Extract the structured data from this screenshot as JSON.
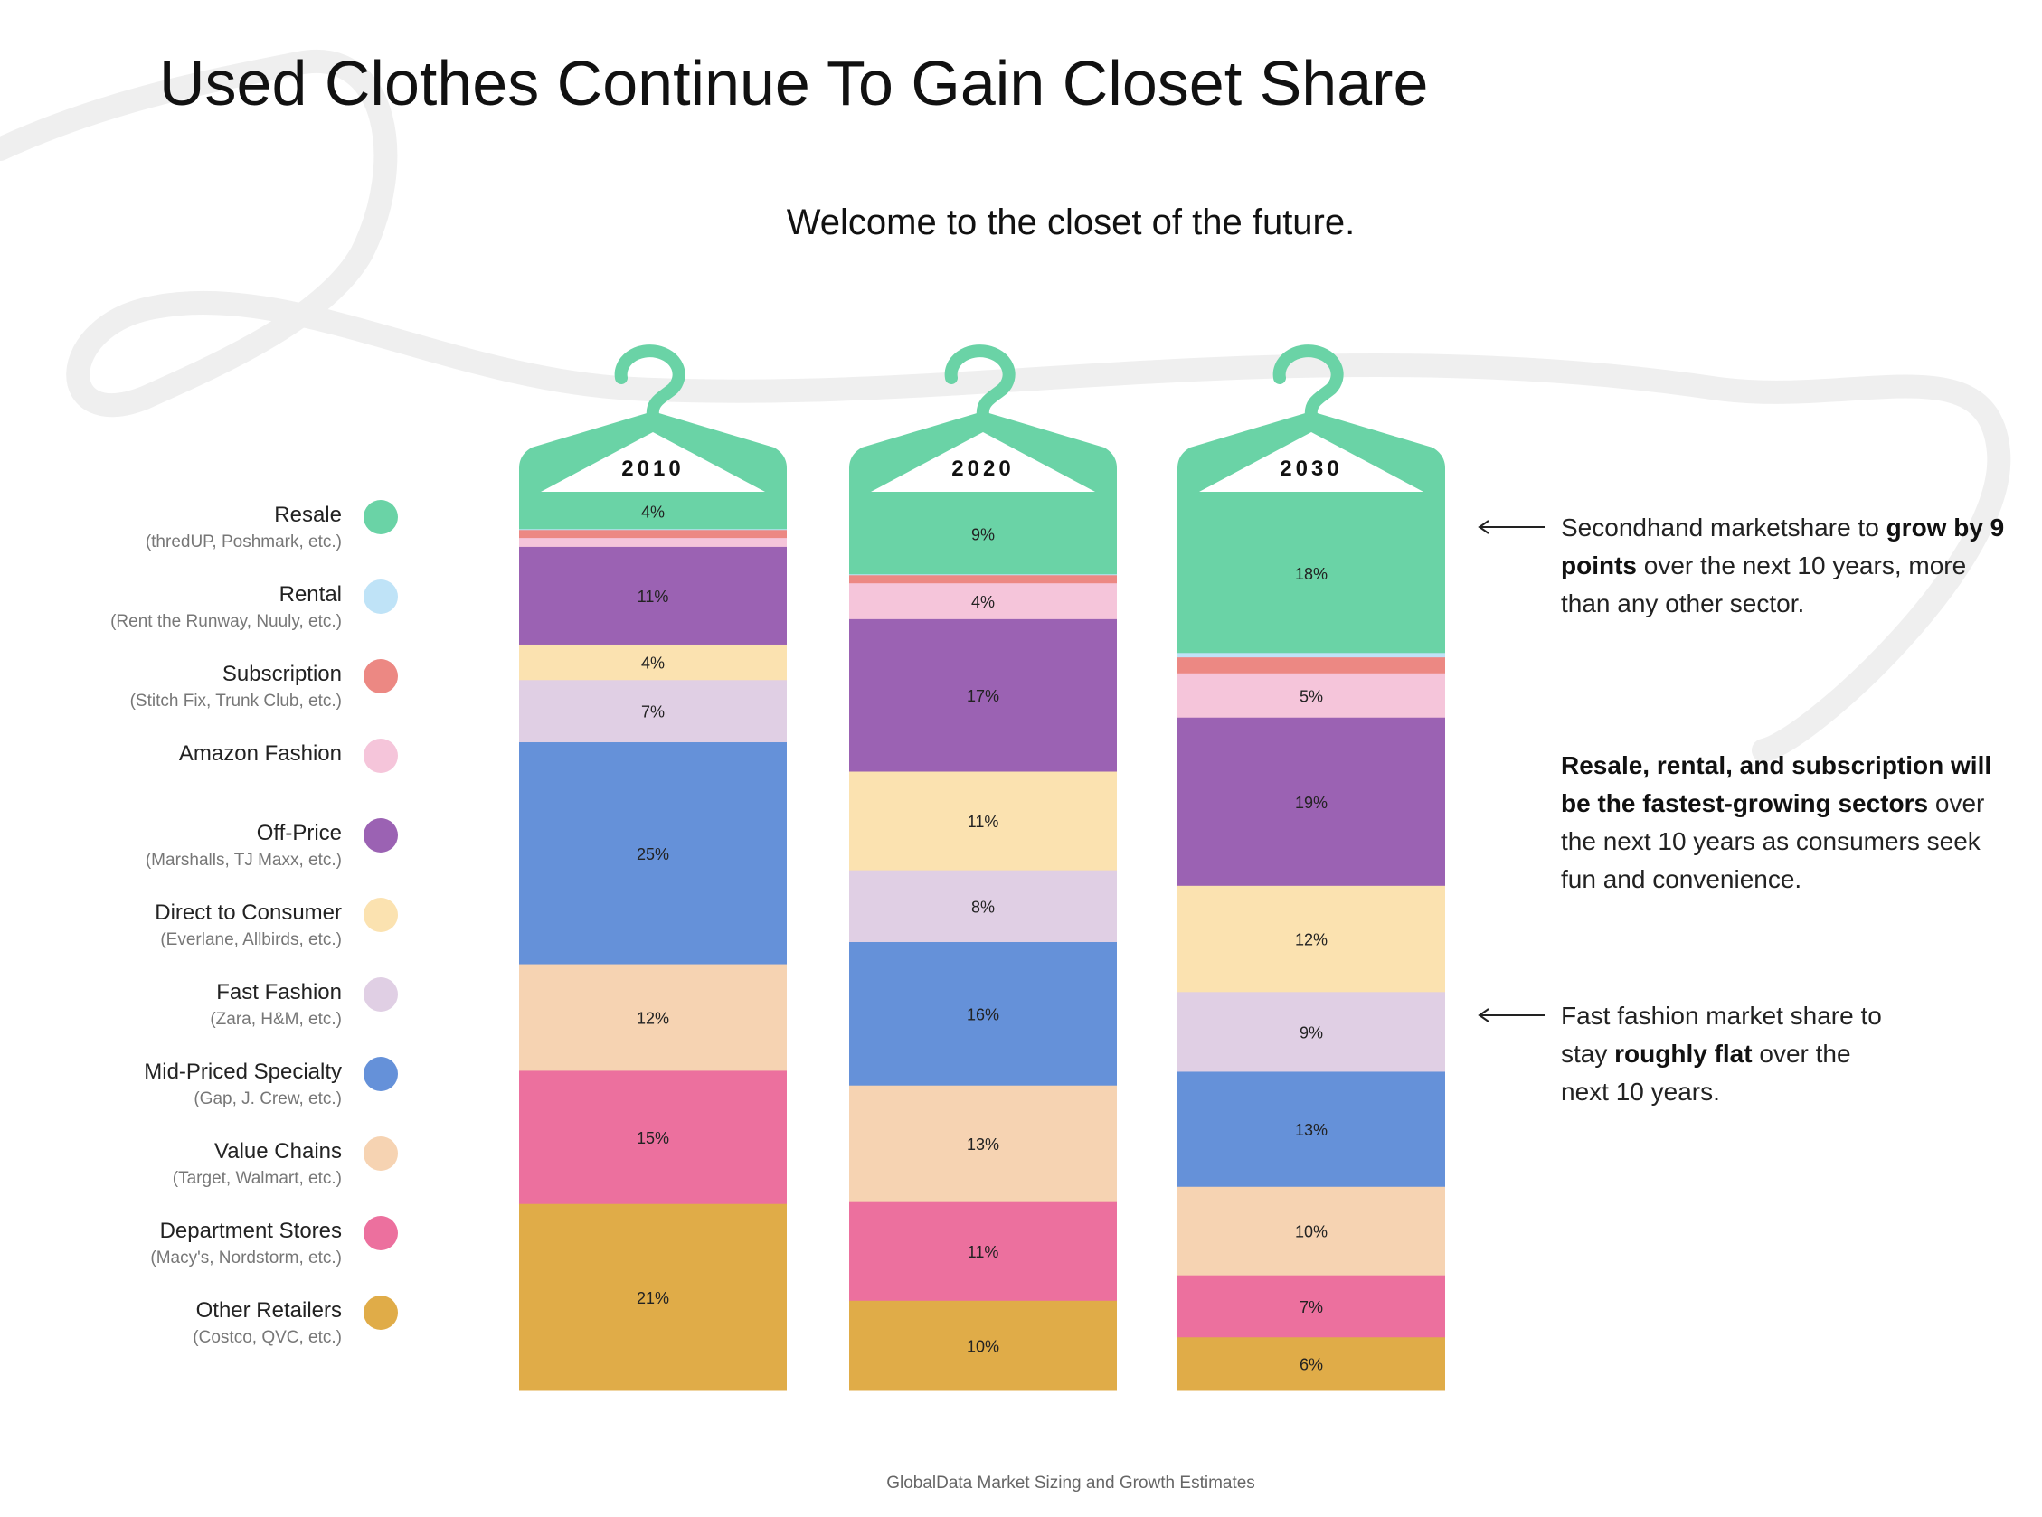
{
  "title": "Used Clothes Continue To Gain Closet Share",
  "subtitle": "Welcome to the closet of the future.",
  "source": "GlobalData Market Sizing and Growth Estimates",
  "legend": [
    {
      "name": "Resale",
      "sub": "(thredUP, Poshmark, etc.)",
      "color": "#6ad3a6"
    },
    {
      "name": "Rental",
      "sub": "(Rent the Runway, Nuuly, etc.)",
      "color": "#bfe3f7"
    },
    {
      "name": "Subscription",
      "sub": "(Stitch Fix, Trunk Club, etc.)",
      "color": "#ec8883"
    },
    {
      "name": "Amazon Fashion",
      "sub": "",
      "color": "#f5c5da"
    },
    {
      "name": "Off-Price",
      "sub": "(Marshalls, TJ Maxx, etc.)",
      "color": "#9b62b3"
    },
    {
      "name": "Direct to Consumer",
      "sub": "(Everlane, Allbirds, etc.)",
      "color": "#fbe2b0"
    },
    {
      "name": "Fast Fashion",
      "sub": "(Zara, H&M, etc.)",
      "color": "#e0cfe4"
    },
    {
      "name": "Mid-Priced Specialty",
      "sub": "(Gap, J. Crew, etc.)",
      "color": "#6591d9"
    },
    {
      "name": "Value Chains",
      "sub": "(Target, Walmart, etc.)",
      "color": "#f6d3b2"
    },
    {
      "name": "Department Stores",
      "sub": "(Macy's, Nordstorm, etc.)",
      "color": "#ec709e"
    },
    {
      "name": "Other Retailers",
      "sub": "(Costco, QVC, etc.)",
      "color": "#e0ac48"
    }
  ],
  "annotations": {
    "note1": {
      "pre": "Secondhand marketshare to ",
      "bold": "grow by 9 points",
      "post": " over the next 10 years, more than any other sector."
    },
    "note2": {
      "pre": "",
      "bold": "Resale, rental, and subscription will be the fastest-growing sectors",
      "post": " over the next 10 years as consumers seek fun and convenience."
    },
    "note3": {
      "pre": "Fast fashion market share to stay ",
      "bold": "roughly flat",
      "post": " over the next 10 years."
    }
  },
  "colors": {
    "hanger": "#6ad3a6",
    "swoosh": "#efefef"
  },
  "chart_data": {
    "type": "bar",
    "stacked": true,
    "unit": "%",
    "categories": [
      "2010",
      "2020",
      "2030"
    ],
    "series": [
      {
        "name": "Resale",
        "values": [
          4,
          9,
          18
        ],
        "labels": [
          "4%",
          "9%",
          "18%"
        ]
      },
      {
        "name": "Rental",
        "values": [
          0.1,
          0.1,
          0.5
        ],
        "labels": [
          "",
          "",
          ""
        ]
      },
      {
        "name": "Subscription",
        "values": [
          0.9,
          0.9,
          1.8
        ],
        "labels": [
          "",
          "",
          ""
        ]
      },
      {
        "name": "Amazon Fashion",
        "values": [
          1,
          4,
          5
        ],
        "labels": [
          "",
          "4%",
          "5%"
        ]
      },
      {
        "name": "Off-Price",
        "values": [
          11,
          17,
          19
        ],
        "labels": [
          "11%",
          "17%",
          "19%"
        ]
      },
      {
        "name": "Direct to Consumer",
        "values": [
          4,
          11,
          12
        ],
        "labels": [
          "4%",
          "11%",
          "12%"
        ]
      },
      {
        "name": "Fast Fashion",
        "values": [
          7,
          8,
          9
        ],
        "labels": [
          "7%",
          "8%",
          "9%"
        ]
      },
      {
        "name": "Mid-Priced Specialty",
        "values": [
          25,
          16,
          13
        ],
        "labels": [
          "25%",
          "16%",
          "13%"
        ]
      },
      {
        "name": "Value Chains",
        "values": [
          12,
          13,
          10
        ],
        "labels": [
          "12%",
          "13%",
          "10%"
        ]
      },
      {
        "name": "Department Stores",
        "values": [
          15,
          11,
          7
        ],
        "labels": [
          "15%",
          "11%",
          "7%"
        ]
      },
      {
        "name": "Other Retailers",
        "values": [
          21,
          10,
          6
        ],
        "labels": [
          "21%",
          "10%",
          "6%"
        ]
      }
    ]
  }
}
